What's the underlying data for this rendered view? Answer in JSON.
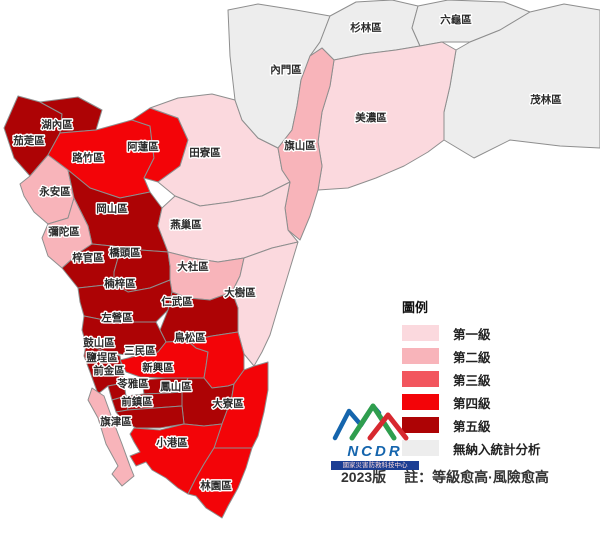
{
  "colors": {
    "level_1": "#fbd9de",
    "level_2": "#f8b4ba",
    "level_3": "#f2565e",
    "level_4": "#f30408",
    "level_5": "#ad0305",
    "not_analyzed": "#ededed",
    "border": "#8e8e8e",
    "label_text": "#2b2b2b"
  },
  "map": {
    "districts": [
      {
        "id": "qieding",
        "name": "茄萣區",
        "level": 5,
        "label": [
          29,
          141
        ]
      },
      {
        "id": "hunei",
        "name": "湖內區",
        "level": 5,
        "label": [
          57,
          125
        ]
      },
      {
        "id": "luzhu",
        "name": "路竹區",
        "level": 4,
        "label": [
          88,
          158
        ]
      },
      {
        "id": "alian",
        "name": "阿蓮區",
        "level": 4,
        "label": [
          143,
          147
        ]
      },
      {
        "id": "tianliao",
        "name": "田寮區",
        "level": 1,
        "label": [
          205,
          153
        ]
      },
      {
        "id": "neimen",
        "name": "內門區",
        "level": 0,
        "label": [
          286,
          70
        ]
      },
      {
        "id": "shanlin",
        "name": "杉林區",
        "level": 0,
        "label": [
          366,
          28
        ]
      },
      {
        "id": "liugui",
        "name": "六龜區",
        "level": 0,
        "label": [
          456,
          20
        ]
      },
      {
        "id": "maolin",
        "name": "茂林區",
        "level": 0,
        "label": [
          546,
          100
        ]
      },
      {
        "id": "meinong",
        "name": "美濃區",
        "level": 1,
        "label": [
          371,
          118
        ]
      },
      {
        "id": "qishan",
        "name": "旗山區",
        "level": 2,
        "label": [
          300,
          146
        ]
      },
      {
        "id": "yongan",
        "name": "永安區",
        "level": 2,
        "label": [
          55,
          192
        ]
      },
      {
        "id": "gangshan",
        "name": "岡山區",
        "level": 5,
        "label": [
          112,
          209
        ]
      },
      {
        "id": "mituo",
        "name": "彌陀區",
        "level": 2,
        "label": [
          64,
          232
        ]
      },
      {
        "id": "yanchao",
        "name": "燕巢區",
        "level": 1,
        "label": [
          186,
          225
        ]
      },
      {
        "id": "ziguan",
        "name": "梓官區",
        "level": 5,
        "label": [
          88,
          258
        ]
      },
      {
        "id": "qiaotou",
        "name": "橋頭區",
        "level": 5,
        "label": [
          125,
          253
        ]
      },
      {
        "id": "dashe",
        "name": "大社區",
        "level": 2,
        "label": [
          193,
          267
        ]
      },
      {
        "id": "nanzi",
        "name": "楠梓區",
        "level": 5,
        "label": [
          120,
          284
        ]
      },
      {
        "id": "dashu",
        "name": "大樹區",
        "level": 1,
        "label": [
          240,
          293
        ]
      },
      {
        "id": "renwu",
        "name": "仁武區",
        "level": 5,
        "label": [
          177,
          302
        ]
      },
      {
        "id": "zuoying",
        "name": "左營區",
        "level": 5,
        "label": [
          117,
          318
        ]
      },
      {
        "id": "gushan",
        "name": "鼓山區",
        "level": 5,
        "label": [
          99,
          343
        ]
      },
      {
        "id": "sanmin",
        "name": "三民區",
        "level": 4,
        "label": [
          140,
          351
        ]
      },
      {
        "id": "niaosong",
        "name": "鳥松區",
        "level": 4,
        "label": [
          190,
          338
        ]
      },
      {
        "id": "yancheng",
        "name": "鹽埕區",
        "level": 5,
        "label": [
          102,
          358
        ]
      },
      {
        "id": "qianjin",
        "name": "前金區",
        "level": 5,
        "label": [
          109,
          371
        ]
      },
      {
        "id": "xinxing",
        "name": "新興區",
        "level": 5,
        "label": [
          158,
          368
        ]
      },
      {
        "id": "lingya",
        "name": "苓雅區",
        "level": 5,
        "label": [
          133,
          384
        ]
      },
      {
        "id": "fengshan",
        "name": "鳳山區",
        "level": 5,
        "label": [
          176,
          387
        ]
      },
      {
        "id": "qianzhen",
        "name": "前鎮區",
        "level": 5,
        "label": [
          137,
          402
        ]
      },
      {
        "id": "qijin",
        "name": "旗津區",
        "level": 2,
        "label": [
          116,
          422
        ]
      },
      {
        "id": "daliao",
        "name": "大寮區",
        "level": 4,
        "label": [
          228,
          404
        ]
      },
      {
        "id": "xiaogang",
        "name": "小港區",
        "level": 4,
        "label": [
          172,
          443
        ]
      },
      {
        "id": "linyuan",
        "name": "林園區",
        "level": 4,
        "label": [
          216,
          486
        ]
      }
    ]
  },
  "legend": {
    "title": "圖例",
    "items": [
      {
        "label": "第一級",
        "level": 1
      },
      {
        "label": "第二級",
        "level": 2
      },
      {
        "label": "第三級",
        "level": 3
      },
      {
        "label": "第四級",
        "level": 4
      },
      {
        "label": "第五級",
        "level": 5
      },
      {
        "label": "無納入統計分析",
        "level": 0
      }
    ]
  },
  "logo": {
    "acronym": "NCDR",
    "org_name": "國家災害防救科技中心"
  },
  "footer": {
    "version": "2023版",
    "note": "註：等級愈高·風險愈高"
  }
}
